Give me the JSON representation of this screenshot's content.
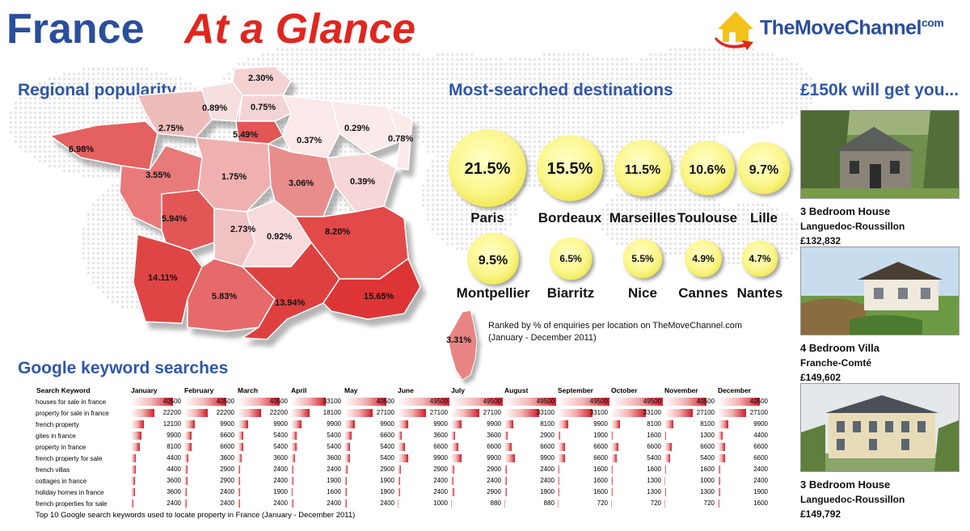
{
  "header": {
    "title_part1": "France",
    "title_part2": "At a Glance",
    "logo_text": "TheMoveChannel",
    "logo_suffix": "com"
  },
  "colors": {
    "title_blue": "#2a4e9c",
    "title_red": "#e0261f",
    "region_high": "#e24848",
    "region_low": "#f6dcdc",
    "bubble": "#fdfb98"
  },
  "regional": {
    "title": "Regional popularity",
    "labels": [
      "2.30%",
      "0.89%",
      "0.75%",
      "2.75%",
      "5.49%",
      "0.29%",
      "0.37%",
      "0.78%",
      "6.98%",
      "3.55%",
      "1.75%",
      "3.06%",
      "0.39%",
      "5.94%",
      "2.73%",
      "0.92%",
      "8.20%",
      "14.11%",
      "5.83%",
      "13.94%",
      "15.65%"
    ],
    "corsica": "3.31%"
  },
  "destinations": {
    "title": "Most-searched destinations",
    "note_line1": "Ranked by % of enquiries per location on TheMoveChannel.com",
    "note_line2": "(January - December 2011)"
  },
  "listings": {
    "title": "£150k will get you...",
    "items": [
      {
        "type": "3 Bedroom House",
        "region": "Languedoc-Roussillon",
        "price": "£132,832"
      },
      {
        "type": "4 Bedroom Villa",
        "region": "Franche-Comté",
        "price": "£149,602"
      },
      {
        "type": "3 Bedroom House",
        "region": "Languedoc-Roussillon",
        "price": "£149,792"
      }
    ]
  },
  "keywords": {
    "title": "Google keyword searches",
    "caption": "Top 10 Google search keywords used to locate property in France (January - December 2011)"
  },
  "chart_data": [
    {
      "type": "bar",
      "title": "Most-searched destinations",
      "categories": [
        "Paris",
        "Bordeaux",
        "Marseilles",
        "Toulouse",
        "Lille",
        "Montpellier",
        "Biarritz",
        "Nice",
        "Cannes",
        "Nantes"
      ],
      "values": [
        21.5,
        15.5,
        11.5,
        10.6,
        9.7,
        9.5,
        6.5,
        5.5,
        4.9,
        4.7
      ],
      "value_labels": [
        "21.5%",
        "15.5%",
        "11.5%",
        "10.6%",
        "9.7%",
        "9.5%",
        "6.5%",
        "5.5%",
        "4.9%",
        "4.7%"
      ]
    },
    {
      "type": "table",
      "title": "Google keyword searches",
      "header_label": "Search Keyword",
      "months": [
        "January",
        "February",
        "March",
        "April",
        "May",
        "June",
        "July",
        "August",
        "September",
        "October",
        "November",
        "December"
      ],
      "rows": [
        {
          "keyword": "houses for sale in france",
          "values": [
            40500,
            40500,
            40500,
            33100,
            40500,
            49500,
            49500,
            49500,
            49500,
            49500,
            40500,
            40500
          ]
        },
        {
          "keyword": "property for sale in france",
          "values": [
            22200,
            22200,
            22200,
            18100,
            27100,
            27100,
            27100,
            33100,
            33100,
            33100,
            27100,
            27100
          ]
        },
        {
          "keyword": "french property",
          "values": [
            12100,
            9900,
            9900,
            9900,
            9900,
            9900,
            9900,
            8100,
            9900,
            8100,
            8100,
            9900
          ]
        },
        {
          "keyword": "gites in france",
          "values": [
            9900,
            6600,
            5400,
            5400,
            6600,
            3600,
            3600,
            2900,
            1900,
            1600,
            1300,
            4400
          ]
        },
        {
          "keyword": "property in france",
          "values": [
            8100,
            6600,
            5400,
            5400,
            5400,
            6600,
            6600,
            6600,
            6600,
            6600,
            6600,
            6600
          ]
        },
        {
          "keyword": "french property for sale",
          "values": [
            4400,
            3600,
            3600,
            3600,
            5400,
            9900,
            9900,
            9900,
            6600,
            5400,
            5400,
            6600
          ]
        },
        {
          "keyword": "french villas",
          "values": [
            4400,
            2900,
            2400,
            2400,
            2900,
            2900,
            2900,
            2400,
            1600,
            1600,
            1600,
            2400
          ]
        },
        {
          "keyword": "cottages in france",
          "values": [
            3600,
            2900,
            2400,
            1900,
            1900,
            2400,
            2400,
            2400,
            1600,
            1300,
            1000,
            2400
          ]
        },
        {
          "keyword": "holiday homes in france",
          "values": [
            3600,
            2400,
            1900,
            1600,
            1900,
            2400,
            2900,
            1900,
            1600,
            1300,
            1300,
            1900
          ]
        },
        {
          "keyword": "french properties for sale",
          "values": [
            2400,
            2400,
            2400,
            2400,
            2400,
            1000,
            880,
            880,
            720,
            720,
            720,
            1600
          ]
        }
      ],
      "max_value": 49500
    }
  ]
}
